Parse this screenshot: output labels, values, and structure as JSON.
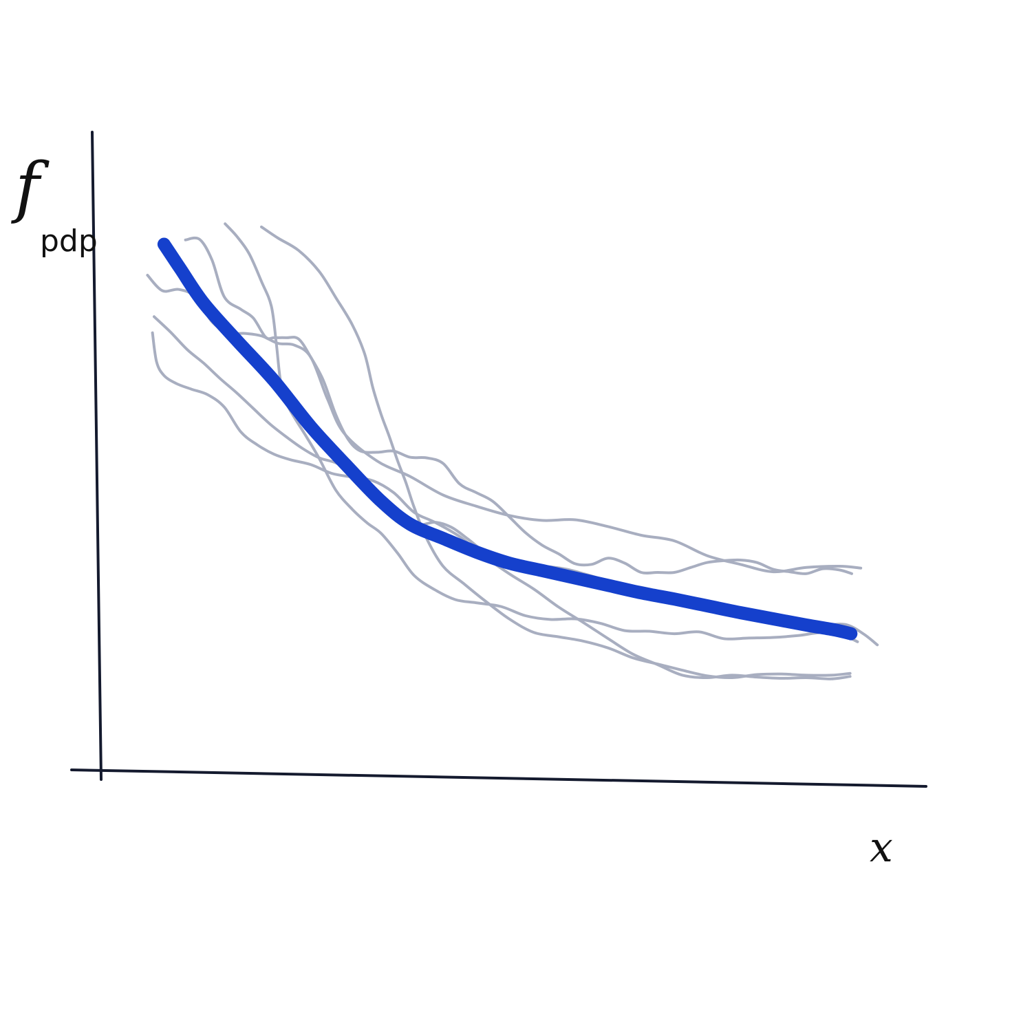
{
  "chart_data": {
    "type": "line",
    "title": "",
    "xlabel": "x",
    "ylabel": {
      "main": "f",
      "subscript": "pdp"
    },
    "xlim": [
      0,
      100
    ],
    "ylim": [
      0,
      100
    ],
    "grid": false,
    "legend": "none",
    "colors": {
      "pdp": "#1540cc",
      "ice": "#a8aec0",
      "axis": "#141a2e"
    },
    "series": [
      {
        "role": "pdp",
        "x": [
          8.2,
          10.2,
          13,
          17,
          21.5,
          26,
          30.5,
          34.5,
          38,
          42,
          46,
          50,
          54,
          58,
          62,
          66,
          70,
          74,
          78,
          82,
          86,
          89.5,
          91.4
        ],
        "y": [
          85,
          81,
          75.5,
          69.5,
          63,
          55.5,
          49,
          43.5,
          39.8,
          37.5,
          35.3,
          33.5,
          32.3,
          31.1,
          29.9,
          28.7,
          27.7,
          26.6,
          25.5,
          24.5,
          23.5,
          22.7,
          22.1
        ]
      },
      {
        "role": "ice",
        "x": [
          6.2,
          8,
          10,
          12,
          14,
          16,
          18,
          20,
          22,
          24,
          26,
          28,
          30,
          34,
          38,
          42,
          46,
          50,
          54,
          58,
          62,
          66,
          70,
          74,
          78,
          82,
          86,
          90,
          92.6
        ],
        "y": [
          80,
          77.5,
          77.7,
          76.5,
          72.5,
          70.7,
          70.6,
          70.2,
          69,
          68.7,
          66.7,
          60,
          54.5,
          50,
          47.5,
          44.5,
          42.7,
          41.2,
          40.4,
          40.5,
          39.4,
          38,
          37.1,
          34.7,
          33.3,
          32.1,
          32.8,
          33,
          32.7
        ]
      },
      {
        "role": "ice",
        "x": [
          10.8,
          12.5,
          14,
          15.5,
          17.5,
          19,
          20.5,
          21.5,
          23,
          24.5,
          26,
          27.5,
          29,
          30.5,
          32,
          34,
          36,
          38,
          40,
          42,
          44,
          46,
          48,
          50,
          52,
          54,
          56,
          58,
          60,
          62,
          64,
          66,
          68,
          70,
          72,
          74,
          76,
          78,
          80,
          82,
          84,
          86,
          88,
          90,
          91.5
        ],
        "y": [
          85.7,
          85.8,
          82.5,
          76.5,
          74.5,
          73.1,
          70,
          69.9,
          69.9,
          69.7,
          66.7,
          63,
          57.5,
          53.5,
          51.6,
          51.4,
          51.6,
          50.6,
          50.5,
          49.6,
          46.3,
          44.9,
          43.5,
          41,
          38.4,
          36.4,
          35,
          33.4,
          33.3,
          34.3,
          33.5,
          32,
          32,
          32,
          32.8,
          33.6,
          33.9,
          34,
          33.6,
          32.5,
          32.1,
          31.8,
          32.6,
          32.4,
          31.8
        ]
      },
      {
        "role": "ice",
        "x": [
          7,
          9,
          11,
          13,
          15,
          17,
          19,
          21,
          23,
          25,
          27,
          29,
          31,
          33,
          35,
          37,
          39,
          41,
          43,
          45,
          47,
          49,
          51,
          53,
          55,
          57,
          59,
          61,
          63,
          65,
          67,
          69,
          71,
          73,
          75,
          77,
          79,
          81,
          83,
          85,
          87,
          89,
          91,
          93,
          94.6
        ],
        "y": [
          73.3,
          70.8,
          68,
          65.8,
          63.3,
          61,
          58.5,
          56,
          53.9,
          52,
          50.5,
          49.7,
          48.2,
          45.8,
          42.6,
          40.3,
          39.6,
          40.1,
          39.3,
          37.4,
          35.3,
          33.8,
          33.2,
          33,
          32.9,
          32.5,
          31.8,
          31,
          30,
          29.8,
          29.3,
          28.5,
          27.8,
          27.3,
          27,
          26.3,
          25.1,
          24.3,
          23.4,
          23,
          22.5,
          23.5,
          23.5,
          22,
          20.3
        ]
      },
      {
        "role": "ice",
        "x": [
          15.6,
          17,
          18.5,
          20,
          21.2,
          21.8,
          22.3,
          23,
          24,
          25.5,
          27,
          29,
          31,
          32.8,
          34.5,
          36.5,
          38.5,
          41,
          43.5,
          46,
          49,
          52,
          55,
          58,
          61,
          64,
          67,
          70,
          73,
          76,
          79,
          82,
          85,
          88,
          90.5,
          92.2
        ],
        "y": [
          88.3,
          86.3,
          83.5,
          79,
          75,
          69,
          63,
          59.5,
          57,
          53.8,
          50.4,
          45.3,
          42.2,
          40,
          38.3,
          35.1,
          31.5,
          29.2,
          27.6,
          27.1,
          26.5,
          25,
          24.4,
          24.5,
          23.8,
          22.6,
          22.5,
          22.1,
          22.4,
          21.3,
          21.4,
          21.5,
          21.8,
          22.3,
          21.8,
          20.8
        ]
      },
      {
        "role": "ice",
        "x": [
          20,
          22,
          24.5,
          27,
          29,
          31,
          32.5,
          33.5,
          34.5,
          35.5,
          36.5,
          37.5,
          38.5,
          40,
          42,
          44.5,
          47,
          50,
          53,
          56,
          59,
          62,
          65,
          68,
          71,
          74,
          77,
          80,
          83,
          86,
          89,
          91.3
        ],
        "y": [
          87.8,
          86,
          84,
          80.6,
          76.4,
          72,
          67.3,
          61.8,
          57.5,
          53.9,
          50,
          46.5,
          42.5,
          37.5,
          33,
          30.2,
          27.5,
          24.5,
          22.3,
          21.6,
          20.9,
          19.8,
          18.2,
          17.2,
          16.2,
          15.3,
          15,
          15.5,
          15.6,
          15.4,
          15.4,
          15.7
        ]
      },
      {
        "role": "ice",
        "x": [
          6.8,
          7.3,
          8.2,
          9.7,
          11.5,
          13.5,
          15.5,
          17.5,
          19.5,
          21.5,
          23.5,
          26,
          28.5,
          31,
          33.5,
          36,
          38.5,
          41,
          44,
          47,
          50,
          53,
          56,
          59,
          62,
          65,
          68,
          71,
          74,
          77,
          80,
          83,
          86,
          89,
          91.3
        ],
        "y": [
          70.7,
          66,
          63.8,
          62.5,
          61.6,
          60.7,
          58.7,
          54.7,
          52.6,
          51.1,
          50.2,
          49.4,
          48,
          47.4,
          46.8,
          44.9,
          41.7,
          40.1,
          37.8,
          34.6,
          31.8,
          29.3,
          26.4,
          23.9,
          21.3,
          18.8,
          17.1,
          15.4,
          15,
          15.4,
          15.1,
          14.9,
          15,
          14.8,
          15.2
        ]
      }
    ]
  }
}
